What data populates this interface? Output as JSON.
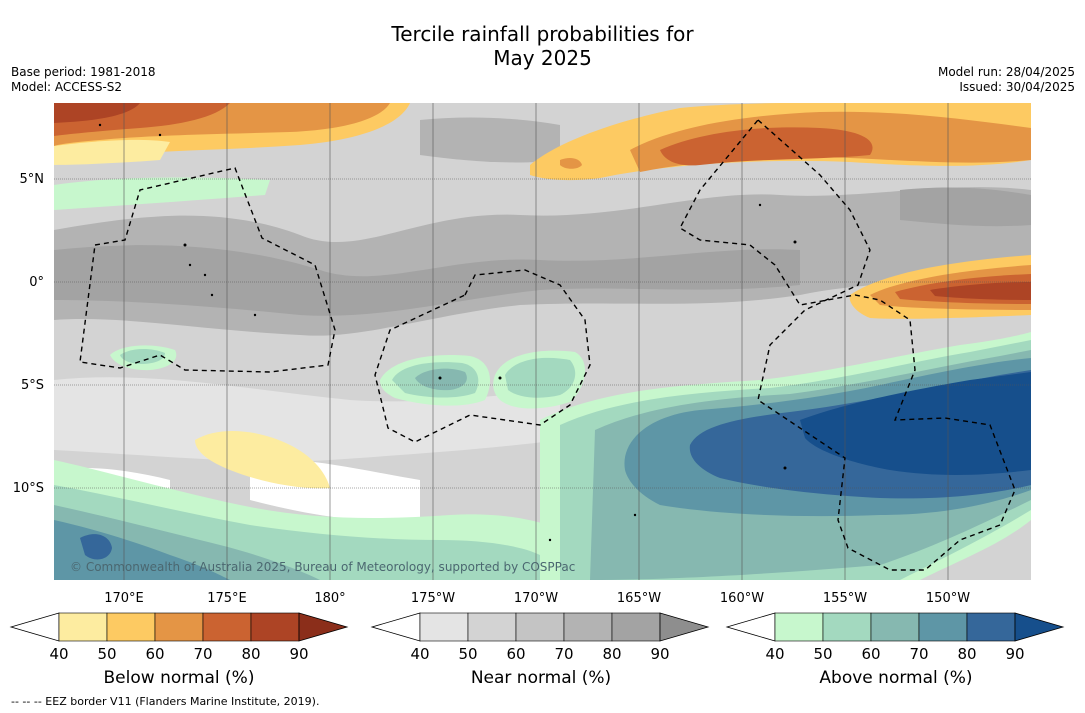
{
  "title_line1": "Tercile rainfall probabilities for",
  "title_line2": "May 2025",
  "meta_left": [
    "Base period: 1981-2018",
    "Model: ACCESS-S2"
  ],
  "meta_right": [
    "Model run: 28/04/2025",
    "Issued: 30/04/2025"
  ],
  "lat_labels": [
    "5°N",
    "0°",
    "5°S",
    "10°S"
  ],
  "lon_labels": [
    "170°E",
    "175°E",
    "180°",
    "175°W",
    "170°W",
    "165°W",
    "160°W",
    "155°W",
    "150°W"
  ],
  "copyright": "© Commonwealth of Australia 2025, Bureau of Meteorology, supported by COSPPac",
  "colorbars": [
    {
      "label": "Below normal (%)",
      "ticks": [
        "40",
        "50",
        "60",
        "70",
        "80",
        "90"
      ],
      "colors": [
        "#fdeca0",
        "#fdca62",
        "#e49545",
        "#cb6331",
        "#ad4425",
        "#8b2e1a"
      ]
    },
    {
      "label": "Near normal (%)",
      "ticks": [
        "40",
        "50",
        "60",
        "70",
        "80",
        "90"
      ],
      "colors": [
        "#e4e4e4",
        "#d3d3d3",
        "#c4c4c4",
        "#b3b3b3",
        "#a3a3a3",
        "#8e8e8e"
      ]
    },
    {
      "label": "Above normal (%)",
      "ticks": [
        "40",
        "50",
        "60",
        "70",
        "80",
        "90"
      ],
      "colors": [
        "#c7f7cd",
        "#a3d9bf",
        "#86b8b0",
        "#5e96a6",
        "#35679a",
        "#164f8c"
      ]
    }
  ],
  "eez_note": "--  --  -- EEZ border V11 (Flanders Marine Institute, 2019)."
}
